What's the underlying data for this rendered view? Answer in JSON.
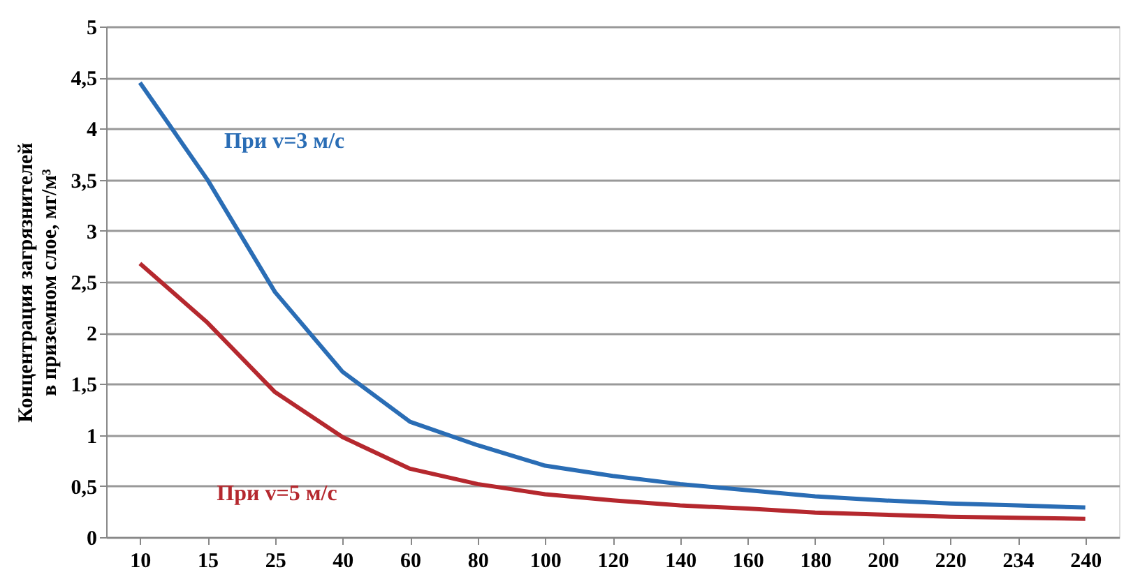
{
  "chart_data": {
    "type": "line",
    "ylabel": "Концентрация загрязнителей\nв приземном слое, мг/м³",
    "categories": [
      "10",
      "15",
      "25",
      "40",
      "60",
      "80",
      "100",
      "120",
      "140",
      "160",
      "180",
      "200",
      "220",
      "234",
      "240"
    ],
    "series": [
      {
        "name": "При v=3 м/с",
        "color": "#2a6db5",
        "values": [
          4.45,
          3.5,
          2.4,
          1.62,
          1.13,
          0.9,
          0.7,
          0.6,
          0.52,
          0.46,
          0.4,
          0.36,
          0.33,
          0.31,
          0.29
        ]
      },
      {
        "name": "При v=5 м/с",
        "color": "#b5282e",
        "values": [
          2.68,
          2.1,
          1.42,
          0.98,
          0.67,
          0.52,
          0.42,
          0.36,
          0.31,
          0.28,
          0.24,
          0.22,
          0.2,
          0.19,
          0.18
        ]
      }
    ],
    "ylim": [
      0,
      5
    ],
    "yticks": [
      0,
      {
        "value": 0.5,
        "label": "0,5"
      },
      1,
      {
        "value": 1.5,
        "label": "1,5"
      },
      2,
      {
        "value": 2.5,
        "label": "2,5"
      },
      3,
      {
        "value": 3.5,
        "label": "3,5"
      },
      4,
      {
        "value": 4.5,
        "label": "4,5"
      },
      5
    ],
    "grid": "y",
    "legend": false,
    "marker": "none",
    "line_style": "solid"
  }
}
